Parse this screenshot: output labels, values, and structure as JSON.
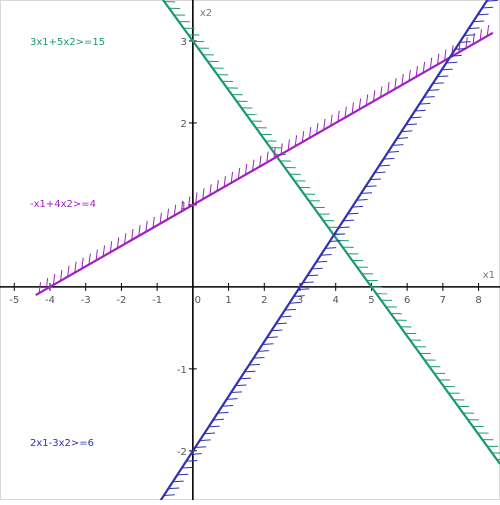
{
  "chart_data": {
    "type": "line",
    "xlabel": "x1",
    "ylabel": "x2",
    "xlim": [
      -5.4,
      8.6
    ],
    "ylim": [
      -2.6,
      3.5
    ],
    "grid": false,
    "x_ticks": [
      "-5",
      "-4",
      "-3",
      "-2",
      "-1",
      "0",
      "1",
      "2",
      "3",
      "4",
      "5",
      "6",
      "7",
      "8"
    ],
    "y_ticks": [
      "-2",
      "-1",
      "0",
      "1",
      "2",
      "3"
    ],
    "series": [
      {
        "name": "3x1+5x2>=15",
        "color": "#1a9a70",
        "x": [
          -1.0,
          8.6
        ],
        "y": [
          3.6,
          -2.16
        ],
        "hatch_side": "upper-right"
      },
      {
        "name": "-x1+4x2>=4",
        "color": "#a020c0",
        "x": [
          -4.4,
          8.4
        ],
        "y": [
          -0.1,
          3.1
        ],
        "hatch_side": "upper-left"
      },
      {
        "name": "2x1-3x2>=6",
        "color": "#3030b0",
        "x": [
          -1.0,
          8.5
        ],
        "y": [
          -2.67,
          3.67
        ],
        "hatch_side": "lower-right"
      }
    ]
  }
}
